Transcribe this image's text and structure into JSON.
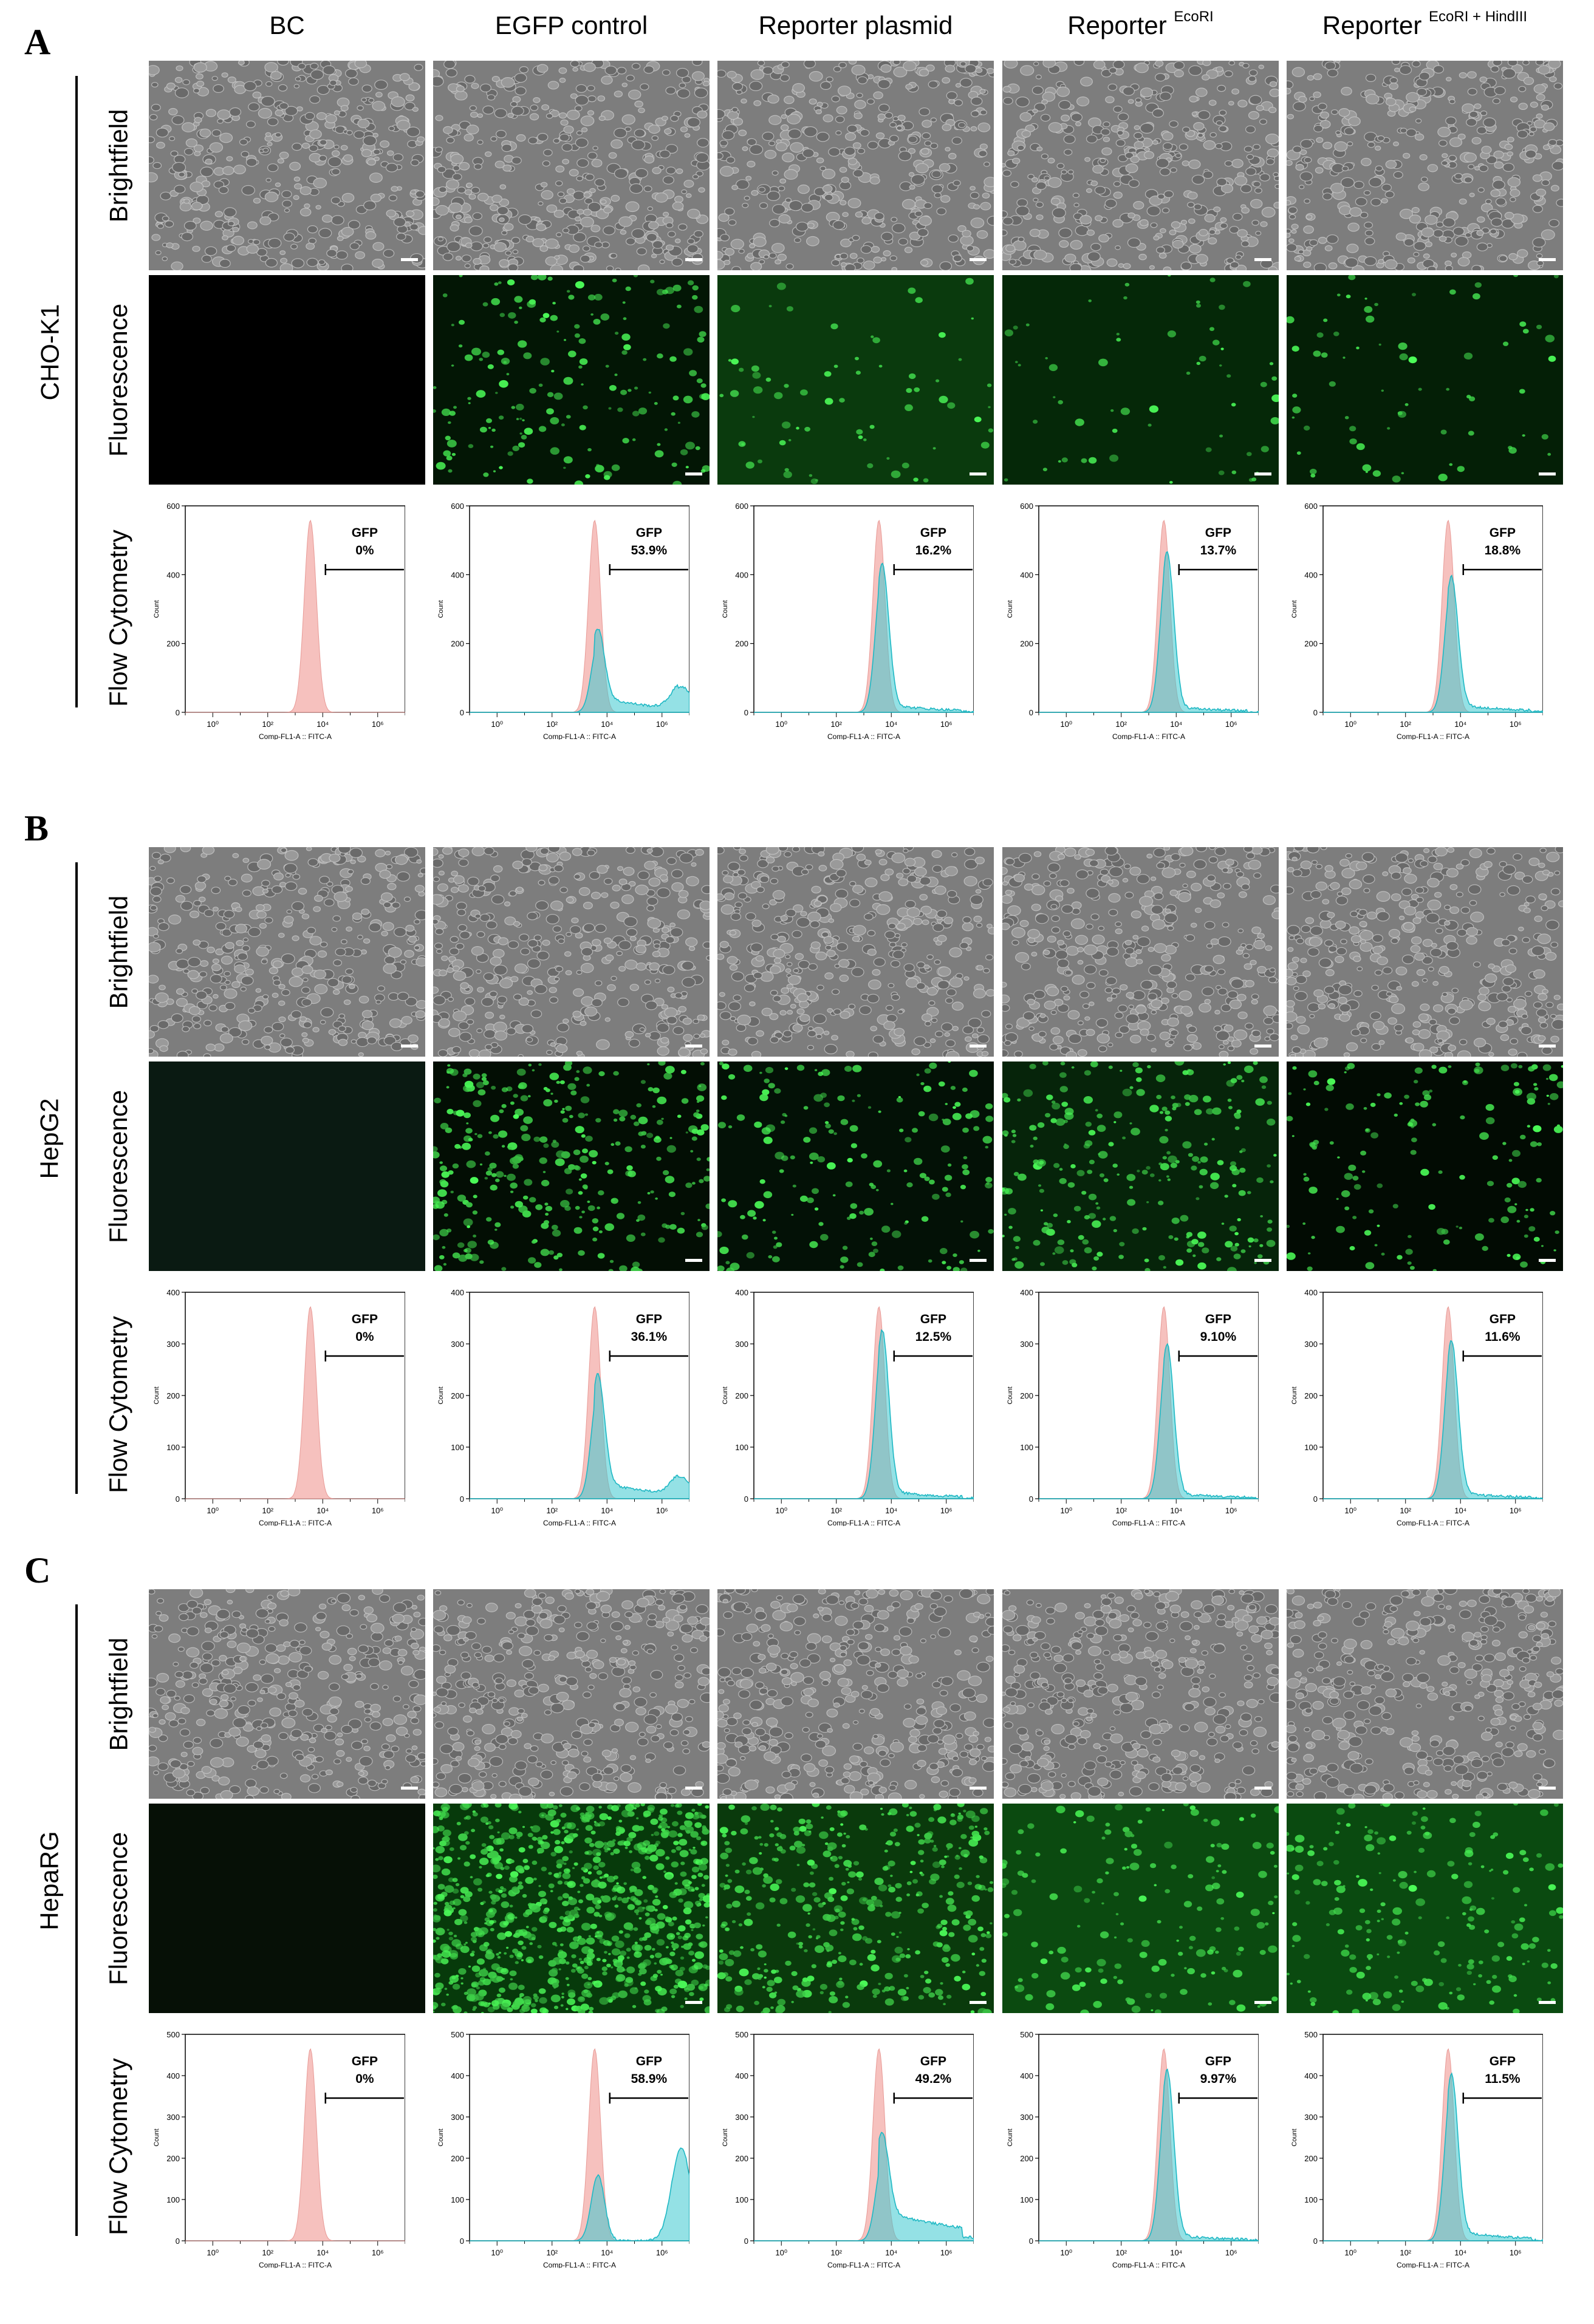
{
  "columns": [
    {
      "label": "BC",
      "sup": ""
    },
    {
      "label": "EGFP control",
      "sup": ""
    },
    {
      "label": "Reporter plasmid",
      "sup": ""
    },
    {
      "label": "Reporter ",
      "sup": "EcoRI"
    },
    {
      "label": "Reporter ",
      "sup": "EcoRI + HindIII"
    }
  ],
  "row_labels": {
    "brightfield": "Brightfield",
    "fluorescence": "Fluorescence",
    "flow": "Flow Cytometry"
  },
  "flow_axis": {
    "xlabel": "Comp-FL1-A :: FITC-A",
    "ylabel": "Count",
    "xticks": [
      "10⁰",
      "10²",
      "10⁴",
      "10⁶"
    ]
  },
  "gate_label": "GFP",
  "panels": [
    {
      "letter": "A",
      "cell_line": "CHO-K1",
      "ymax": 600,
      "yticks": [
        "0",
        "200",
        "400",
        "600"
      ],
      "gfp": [
        "0%",
        "53.9%",
        "16.2%",
        "13.7%",
        "18.8%"
      ]
    },
    {
      "letter": "B",
      "cell_line": "HepG2",
      "ymax": 400,
      "yticks": [
        "0",
        "100",
        "200",
        "300",
        "400"
      ],
      "gfp": [
        "0%",
        "36.1%",
        "12.5%",
        "9.10%",
        "11.6%"
      ]
    },
    {
      "letter": "C",
      "cell_line": "HepaRG",
      "ymax": 500,
      "yticks": [
        "0",
        "100",
        "200",
        "300",
        "400",
        "500"
      ],
      "gfp": [
        "0%",
        "58.9%",
        "49.2%",
        "9.97%",
        "11.5%"
      ]
    }
  ],
  "colors": {
    "control_hist": "#f4b6b3",
    "sample_hist": "#3cc8d0",
    "fluor_bg": "#021a05",
    "fluor_cell": "#3ef04a"
  }
}
